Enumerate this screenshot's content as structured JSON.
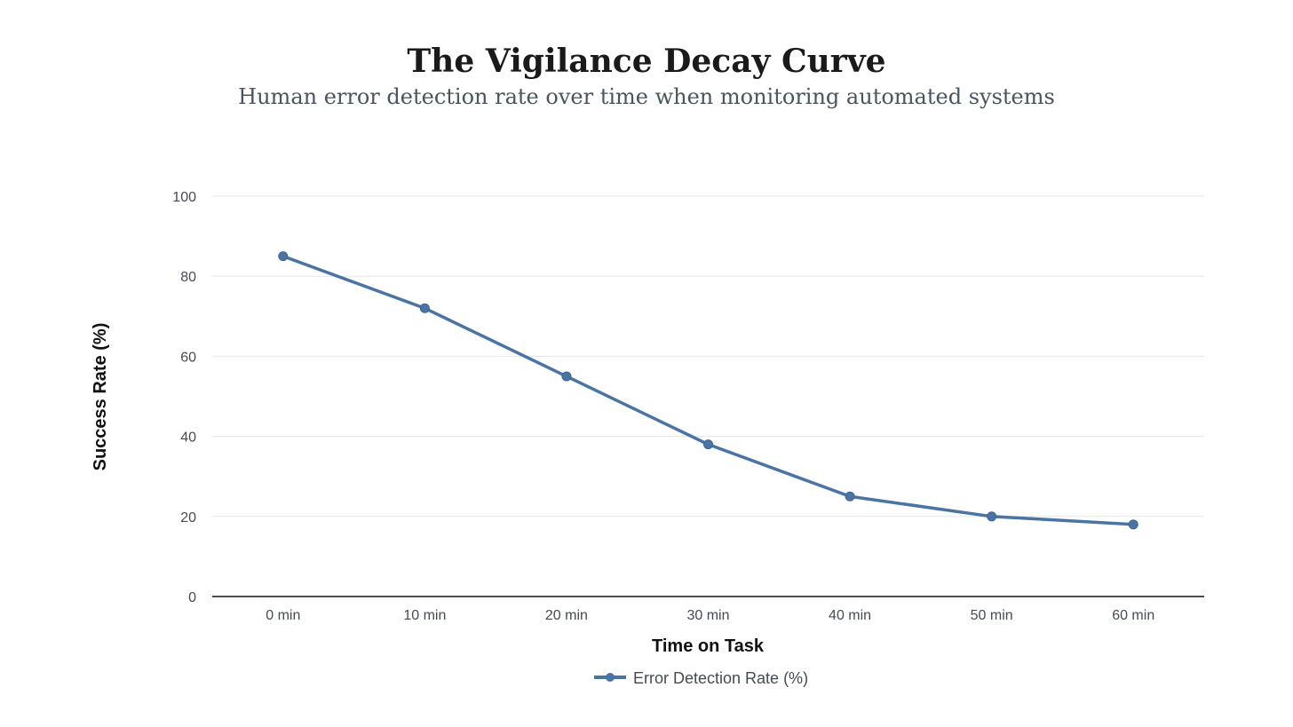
{
  "chart_data": {
    "type": "line",
    "title": "The Vigilance Decay Curve",
    "subtitle": "Human error detection rate over time when monitoring automated systems",
    "xlabel": "Time on Task",
    "ylabel": "Success Rate (%)",
    "categories": [
      "0 min",
      "10 min",
      "20 min",
      "30 min",
      "40 min",
      "50 min",
      "60 min"
    ],
    "series": [
      {
        "name": "Error Detection Rate (%)",
        "values": [
          85,
          72,
          55,
          38,
          25,
          20,
          18
        ],
        "color": "#4a74a4"
      }
    ],
    "ylim": [
      0,
      100
    ],
    "yticks": [
      "0",
      "20",
      "40",
      "60",
      "80",
      "100"
    ],
    "grid": true,
    "legend": "bottom-center"
  }
}
